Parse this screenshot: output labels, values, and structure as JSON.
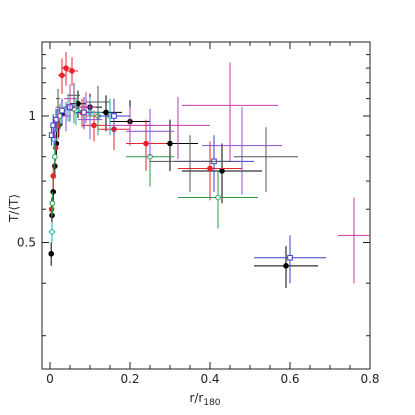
{
  "chart_data": {
    "type": "scatter",
    "title": "",
    "xlabel": "r/r",
    "xlabel_sub": "180",
    "ylabel": "T/⟨T⟩",
    "xlim": [
      -0.02,
      0.8
    ],
    "ylim": [
      0.25,
      1.5
    ],
    "yscale": "log",
    "xticks": [
      0,
      0.2,
      0.4,
      0.6,
      0.8
    ],
    "xtick_labels": [
      "0",
      "0.2",
      "0.4",
      "0.6",
      "0.8"
    ],
    "yticks": [
      0.5,
      1
    ],
    "ytick_labels": [
      "0.5",
      "1"
    ],
    "grid": false,
    "legend": "none",
    "series": [
      {
        "color": "#000000",
        "marker": "filled-circle",
        "points": [
          {
            "x": 0.003,
            "y": 0.47,
            "xerr": 0.002,
            "yerr": 0.03
          },
          {
            "x": 0.005,
            "y": 0.58,
            "xerr": 0.002,
            "yerr": 0.04
          },
          {
            "x": 0.008,
            "y": 0.66,
            "xerr": 0.003,
            "yerr": 0.05
          },
          {
            "x": 0.012,
            "y": 0.76,
            "xerr": 0.004,
            "yerr": 0.05
          },
          {
            "x": 0.016,
            "y": 0.86,
            "xerr": 0.004,
            "yerr": 0.06
          },
          {
            "x": 0.022,
            "y": 0.95,
            "xerr": 0.006,
            "yerr": 0.06
          },
          {
            "x": 0.03,
            "y": 1.01,
            "xerr": 0.008,
            "yerr": 0.06
          },
          {
            "x": 0.045,
            "y": 1.05,
            "xerr": 0.012,
            "yerr": 0.07
          },
          {
            "x": 0.07,
            "y": 1.07,
            "xerr": 0.02,
            "yerr": 0.08
          },
          {
            "x": 0.1,
            "y": 1.05,
            "xerr": 0.03,
            "yerr": 0.08
          },
          {
            "x": 0.14,
            "y": 1.02,
            "xerr": 0.04,
            "yerr": 0.1
          },
          {
            "x": 0.2,
            "y": 0.97,
            "xerr": 0.05,
            "yerr": 0.12
          },
          {
            "x": 0.3,
            "y": 0.86,
            "xerr": 0.07,
            "yerr": 0.12
          },
          {
            "x": 0.43,
            "y": 0.74,
            "xerr": 0.1,
            "yerr": 0.12
          },
          {
            "x": 0.59,
            "y": 0.44,
            "xerr": 0.08,
            "yerr": 0.05
          }
        ]
      },
      {
        "color": "#e8232a",
        "marker": "filled-circle",
        "points": [
          {
            "x": 0.004,
            "y": 0.6,
            "xerr": 0.002,
            "yerr": 0.04
          },
          {
            "x": 0.008,
            "y": 0.72,
            "xerr": 0.003,
            "yerr": 0.05
          },
          {
            "x": 0.014,
            "y": 0.84,
            "xerr": 0.004,
            "yerr": 0.06
          },
          {
            "x": 0.02,
            "y": 0.95,
            "xerr": 0.005,
            "yerr": 0.07
          },
          {
            "x": 0.03,
            "y": 1.25,
            "xerr": 0.01,
            "yerr": 0.12
          },
          {
            "x": 0.04,
            "y": 1.3,
            "xerr": 0.012,
            "yerr": 0.12
          },
          {
            "x": 0.055,
            "y": 1.28,
            "xerr": 0.015,
            "yerr": 0.1
          },
          {
            "x": 0.08,
            "y": 1.02,
            "xerr": 0.02,
            "yerr": 0.08
          },
          {
            "x": 0.11,
            "y": 0.95,
            "xerr": 0.03,
            "yerr": 0.08
          },
          {
            "x": 0.16,
            "y": 0.93,
            "xerr": 0.04,
            "yerr": 0.1
          },
          {
            "x": 0.24,
            "y": 0.86,
            "xerr": 0.05,
            "yerr": 0.12
          },
          {
            "x": 0.4,
            "y": 0.75,
            "xerr": 0.08,
            "yerr": 0.12
          }
        ]
      },
      {
        "color": "#18b5b0",
        "marker": "open-diamond",
        "points": [
          {
            "x": 0.005,
            "y": 0.53,
            "xerr": 0.002,
            "yerr": 0.03
          },
          {
            "x": 0.01,
            "y": 0.88,
            "xerr": 0.003,
            "yerr": 0.05
          },
          {
            "x": 0.018,
            "y": 0.98,
            "xerr": 0.005,
            "yerr": 0.06
          },
          {
            "x": 0.03,
            "y": 1.03,
            "xerr": 0.008,
            "yerr": 0.07
          },
          {
            "x": 0.045,
            "y": 1.05,
            "xerr": 0.012,
            "yerr": 0.08
          },
          {
            "x": 0.065,
            "y": 1.03,
            "xerr": 0.018,
            "yerr": 0.08
          },
          {
            "x": 0.1,
            "y": 1.02,
            "xerr": 0.03,
            "yerr": 0.09
          },
          {
            "x": 0.15,
            "y": 1.0,
            "xerr": 0.04,
            "yerr": 0.1
          }
        ]
      },
      {
        "color": "#2c9a4a",
        "marker": "open-circle",
        "points": [
          {
            "x": 0.006,
            "y": 0.62,
            "xerr": 0.002,
            "yerr": 0.04
          },
          {
            "x": 0.012,
            "y": 0.8,
            "xerr": 0.004,
            "yerr": 0.05
          },
          {
            "x": 0.025,
            "y": 1.0,
            "xerr": 0.007,
            "yerr": 0.07
          },
          {
            "x": 0.06,
            "y": 1.04,
            "xerr": 0.015,
            "yerr": 0.08
          },
          {
            "x": 0.12,
            "y": 1.0,
            "xerr": 0.03,
            "yerr": 0.1
          },
          {
            "x": 0.25,
            "y": 0.8,
            "xerr": 0.06,
            "yerr": 0.12
          },
          {
            "x": 0.42,
            "y": 0.64,
            "xerr": 0.1,
            "yerr": 0.1
          }
        ]
      },
      {
        "color": "#3a3fc6",
        "marker": "open-square",
        "points": [
          {
            "x": 0.004,
            "y": 0.9,
            "xerr": 0.002,
            "yerr": 0.05
          },
          {
            "x": 0.008,
            "y": 0.95,
            "xerr": 0.003,
            "yerr": 0.06
          },
          {
            "x": 0.015,
            "y": 0.98,
            "xerr": 0.004,
            "yerr": 0.06
          },
          {
            "x": 0.03,
            "y": 1.03,
            "xerr": 0.008,
            "yerr": 0.07
          },
          {
            "x": 0.05,
            "y": 1.05,
            "xerr": 0.012,
            "yerr": 0.08
          },
          {
            "x": 0.085,
            "y": 1.02,
            "xerr": 0.02,
            "yerr": 0.09
          },
          {
            "x": 0.16,
            "y": 1.0,
            "xerr": 0.04,
            "yerr": 0.1
          },
          {
            "x": 0.41,
            "y": 0.78,
            "xerr": 0.1,
            "yerr": 0.12
          },
          {
            "x": 0.6,
            "y": 0.46,
            "xerr": 0.09,
            "yerr": 0.06
          }
        ]
      },
      {
        "color": "#c83ba8",
        "marker": "none",
        "points": [
          {
            "x": 0.02,
            "y": 1.05,
            "xerr": 0.006,
            "yerr": 0.08
          },
          {
            "x": 0.05,
            "y": 1.1,
            "xerr": 0.015,
            "yerr": 0.09
          },
          {
            "x": 0.09,
            "y": 1.05,
            "xerr": 0.025,
            "yerr": 0.09
          },
          {
            "x": 0.2,
            "y": 0.95,
            "xerr": 0.06,
            "yerr": 0.1
          },
          {
            "x": 0.32,
            "y": 0.95,
            "xerr": 0.08,
            "yerr": 0.16
          },
          {
            "x": 0.45,
            "y": 1.06,
            "xerr": 0.12,
            "yerr": 0.28
          },
          {
            "x": 0.76,
            "y": 0.52,
            "xerr": 0.04,
            "yerr": 0.12
          }
        ]
      },
      {
        "color": "#8a4fd8",
        "marker": "none",
        "points": [
          {
            "x": 0.012,
            "y": 0.92,
            "xerr": 0.004,
            "yerr": 0.06
          },
          {
            "x": 0.04,
            "y": 1.0,
            "xerr": 0.012,
            "yerr": 0.08
          },
          {
            "x": 0.1,
            "y": 0.98,
            "xerr": 0.03,
            "yerr": 0.1
          },
          {
            "x": 0.25,
            "y": 0.92,
            "xerr": 0.06,
            "yerr": 0.12
          },
          {
            "x": 0.48,
            "y": 0.85,
            "xerr": 0.1,
            "yerr": 0.2
          }
        ]
      },
      {
        "color": "#555555",
        "marker": "none",
        "points": [
          {
            "x": 0.02,
            "y": 1.1,
            "xerr": 0.005,
            "yerr": 0.06
          },
          {
            "x": 0.06,
            "y": 1.12,
            "xerr": 0.015,
            "yerr": 0.08
          },
          {
            "x": 0.12,
            "y": 1.08,
            "xerr": 0.03,
            "yerr": 0.1
          },
          {
            "x": 0.35,
            "y": 0.78,
            "xerr": 0.1,
            "yerr": 0.12
          },
          {
            "x": 0.54,
            "y": 0.8,
            "xerr": 0.08,
            "yerr": 0.14
          }
        ]
      }
    ]
  }
}
